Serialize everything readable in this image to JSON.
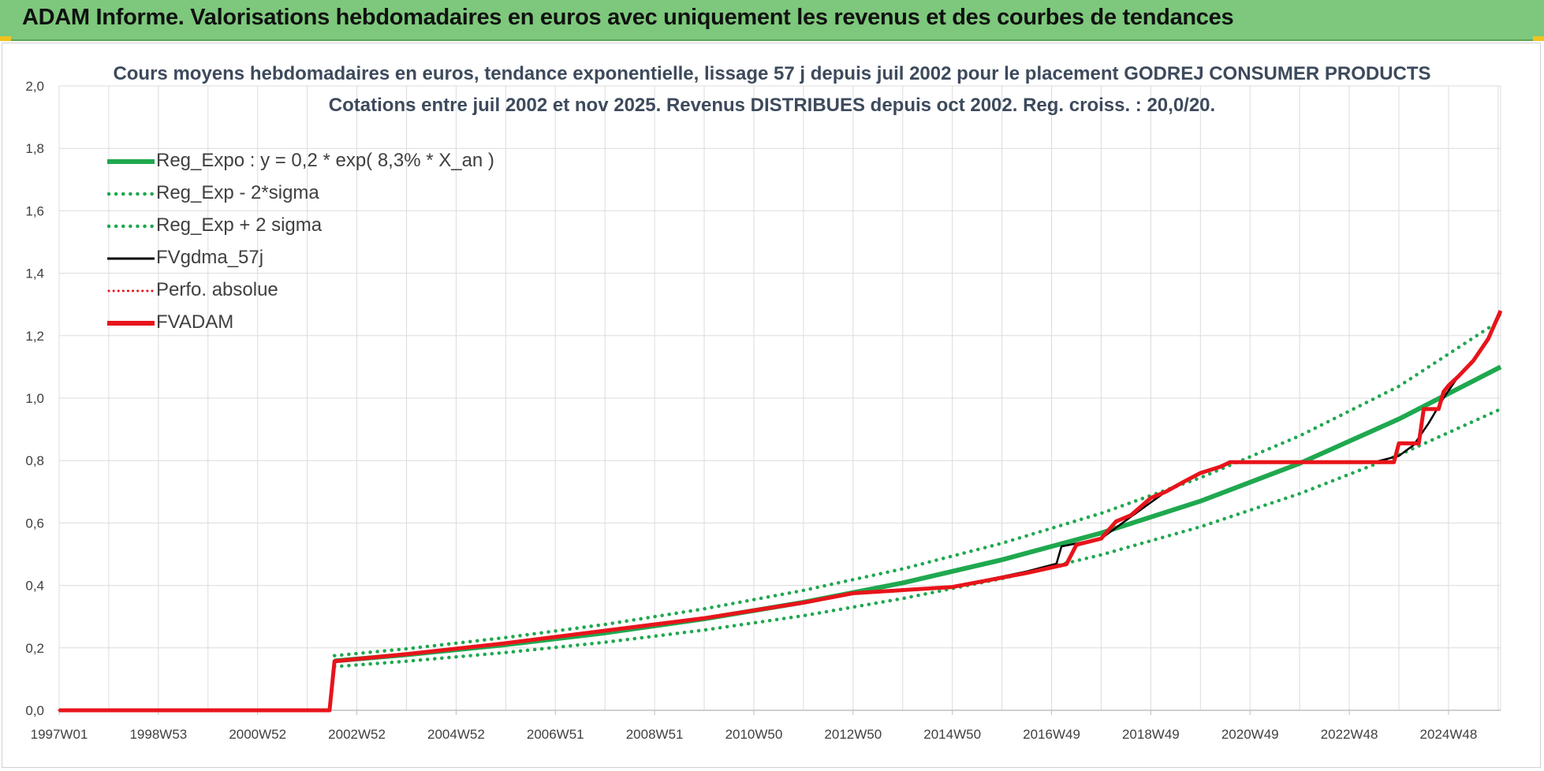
{
  "banner": {
    "title": "ADAM Informe. Valorisations hebdomadaires en euros avec uniquement les revenus et des courbes de tendances"
  },
  "colors": {
    "banner": "#7dc87c",
    "reg_expo": "#1fa84f",
    "sigma": "#1fa84f",
    "fvgdma": "#000000",
    "perfo": "#e8141b",
    "fvadam": "#e8141b",
    "grid": "#dcdcdc"
  },
  "chart_data": {
    "type": "line",
    "title_line1": "Cours moyens hebdomadaires en euros, tendance exponentielle, lissage 57 j depuis juil 2002 pour le placement GODREJ CONSUMER PRODUCTS",
    "title_line2": "Cotations entre juil 2002 et nov 2025. Revenus DISTRIBUES depuis oct 2002. Reg. croiss. : 20,0/20.",
    "ylim": [
      0,
      2.0
    ],
    "xlim": [
      1997.0,
      2026.05
    ],
    "y_ticks": [
      "0,0",
      "0,2",
      "0,4",
      "0,6",
      "0,8",
      "1,0",
      "1,2",
      "1,4",
      "1,6",
      "1,8",
      "2,0"
    ],
    "x_ticks": [
      {
        "label": "1997W01",
        "year": 1997.0
      },
      {
        "label": "1998W53",
        "year": 1999.0
      },
      {
        "label": "2000W52",
        "year": 2001.0
      },
      {
        "label": "2002W52",
        "year": 2003.0
      },
      {
        "label": "2004W52",
        "year": 2005.0
      },
      {
        "label": "2006W51",
        "year": 2007.0
      },
      {
        "label": "2008W51",
        "year": 2009.0
      },
      {
        "label": "2010W50",
        "year": 2011.0
      },
      {
        "label": "2012W50",
        "year": 2013.0
      },
      {
        "label": "2014W50",
        "year": 2015.0
      },
      {
        "label": "2016W49",
        "year": 2017.0
      },
      {
        "label": "2018W49",
        "year": 2019.0
      },
      {
        "label": "2020W49",
        "year": 2021.0
      },
      {
        "label": "2022W48",
        "year": 2023.0
      },
      {
        "label": "2024W48",
        "year": 2025.0
      }
    ],
    "grid": true,
    "legend_position": "top-left",
    "series": [
      {
        "name": "Reg_Expo : y = 0,2 * exp( 8,3% *  X_an )",
        "style": "solid-thick",
        "color": "#1fa84f",
        "x": [
          2002.55,
          2004,
          2006,
          2008,
          2010,
          2012,
          2014,
          2016,
          2018,
          2020,
          2022,
          2024,
          2026.05
        ],
        "y": [
          0.158,
          0.178,
          0.21,
          0.248,
          0.293,
          0.346,
          0.408,
          0.482,
          0.568,
          0.67,
          0.791,
          0.933,
          1.1
        ]
      },
      {
        "name": "Reg_Exp - 2*sigma",
        "style": "dotted",
        "color": "#1fa84f",
        "x": [
          2002.55,
          2004,
          2006,
          2008,
          2010,
          2012,
          2014,
          2016,
          2018,
          2020,
          2022,
          2024,
          2026.05
        ],
        "y": [
          0.14,
          0.157,
          0.185,
          0.218,
          0.257,
          0.303,
          0.358,
          0.422,
          0.498,
          0.588,
          0.694,
          0.818,
          0.965
        ]
      },
      {
        "name": "Reg_Exp + 2 sigma",
        "style": "dotted",
        "color": "#1fa84f",
        "x": [
          2002.55,
          2004,
          2006,
          2008,
          2010,
          2012,
          2014,
          2016,
          2018,
          2020,
          2022,
          2024,
          2026.05
        ],
        "y": [
          0.175,
          0.197,
          0.233,
          0.275,
          0.325,
          0.384,
          0.453,
          0.535,
          0.631,
          0.745,
          0.879,
          1.038,
          1.25
        ]
      },
      {
        "name": "FVgdma_57j",
        "style": "solid",
        "color": "#000000",
        "x": [
          1997.0,
          2002.45,
          2002.55,
          2004,
          2006,
          2008,
          2010,
          2012,
          2013,
          2015,
          2016.5,
          2017.1,
          2017.2,
          2018.0,
          2018.6,
          2019.3,
          2020.0,
          2020.6,
          2022.0,
          2023.5,
          2024.0,
          2024.3,
          2024.6,
          2024.9,
          2025.2,
          2025.5,
          2025.8,
          2026.05
        ],
        "y": [
          0,
          0,
          0.157,
          0.18,
          0.215,
          0.255,
          0.295,
          0.345,
          0.375,
          0.395,
          0.445,
          0.47,
          0.525,
          0.55,
          0.62,
          0.7,
          0.76,
          0.795,
          0.795,
          0.795,
          0.815,
          0.85,
          0.92,
          1.0,
          1.07,
          1.12,
          1.19,
          1.27
        ]
      },
      {
        "name": "Perfo. absolue",
        "style": "dotted",
        "color": "#e8141b",
        "x": [
          1997.0,
          2002.45,
          2002.55,
          2004,
          2006,
          2008,
          2010,
          2012,
          2013,
          2015,
          2016.5,
          2017.3,
          2017.5,
          2018.0,
          2018.3,
          2018.6,
          2019.0,
          2019.3,
          2019.7,
          2020.0,
          2020.4,
          2020.6,
          2023.9,
          2024.0,
          2024.4,
          2024.5,
          2024.8,
          2024.9,
          2025.0,
          2025.2,
          2025.5,
          2025.8,
          2026.05
        ],
        "y": [
          0,
          0,
          0.157,
          0.18,
          0.215,
          0.255,
          0.295,
          0.345,
          0.375,
          0.395,
          0.44,
          0.468,
          0.53,
          0.55,
          0.605,
          0.625,
          0.68,
          0.7,
          0.735,
          0.76,
          0.78,
          0.795,
          0.795,
          0.855,
          0.855,
          0.965,
          0.965,
          1.02,
          1.04,
          1.07,
          1.12,
          1.19,
          1.28
        ]
      },
      {
        "name": "FVADAM",
        "style": "solid-thick",
        "color": "#e8141b",
        "x": [
          1997.0,
          2002.45,
          2002.55,
          2004,
          2006,
          2008,
          2010,
          2012,
          2013,
          2015,
          2016.5,
          2017.3,
          2017.5,
          2018.0,
          2018.3,
          2018.6,
          2019.0,
          2019.3,
          2019.7,
          2020.0,
          2020.4,
          2020.6,
          2023.9,
          2024.0,
          2024.4,
          2024.5,
          2024.8,
          2024.9,
          2025.0,
          2025.2,
          2025.5,
          2025.8,
          2026.05
        ],
        "y": [
          0,
          0,
          0.157,
          0.18,
          0.215,
          0.255,
          0.295,
          0.345,
          0.375,
          0.395,
          0.44,
          0.468,
          0.53,
          0.55,
          0.605,
          0.625,
          0.68,
          0.7,
          0.735,
          0.76,
          0.78,
          0.795,
          0.795,
          0.855,
          0.855,
          0.965,
          0.965,
          1.02,
          1.04,
          1.07,
          1.12,
          1.19,
          1.28
        ]
      }
    ]
  }
}
